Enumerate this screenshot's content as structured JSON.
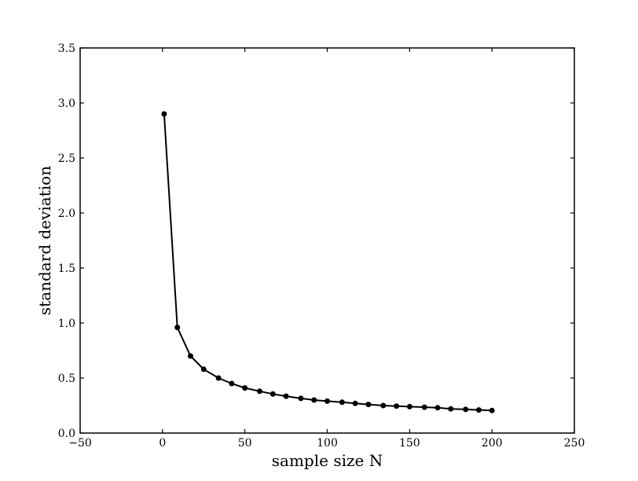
{
  "chart_data": {
    "type": "line",
    "title": "",
    "xlabel": "sample size N",
    "ylabel": "standard deviation",
    "xlim": [
      -50,
      250
    ],
    "ylim": [
      0.0,
      3.5
    ],
    "grid": false,
    "x_ticks": [
      -50,
      0,
      50,
      100,
      150,
      200,
      250
    ],
    "y_ticks": [
      0.0,
      0.5,
      1.0,
      1.5,
      2.0,
      2.5,
      3.0,
      3.5
    ],
    "x_tick_labels": [
      "−50",
      "0",
      "50",
      "100",
      "150",
      "200",
      "250"
    ],
    "y_tick_labels": [
      "0.0",
      "0.5",
      "1.0",
      "1.5",
      "2.0",
      "2.5",
      "3.0",
      "3.5"
    ],
    "series": [
      {
        "color": "#000000",
        "marker": "circle",
        "x": [
          1,
          9,
          17,
          25,
          34,
          42,
          50,
          59,
          67,
          75,
          84,
          92,
          100,
          109,
          117,
          125,
          134,
          142,
          150,
          159,
          167,
          175,
          184,
          192,
          200
        ],
        "y": [
          2.9,
          0.96,
          0.7,
          0.58,
          0.5,
          0.45,
          0.41,
          0.38,
          0.355,
          0.335,
          0.315,
          0.3,
          0.29,
          0.28,
          0.27,
          0.26,
          0.25,
          0.245,
          0.24,
          0.235,
          0.23,
          0.22,
          0.215,
          0.21,
          0.205
        ]
      }
    ]
  }
}
